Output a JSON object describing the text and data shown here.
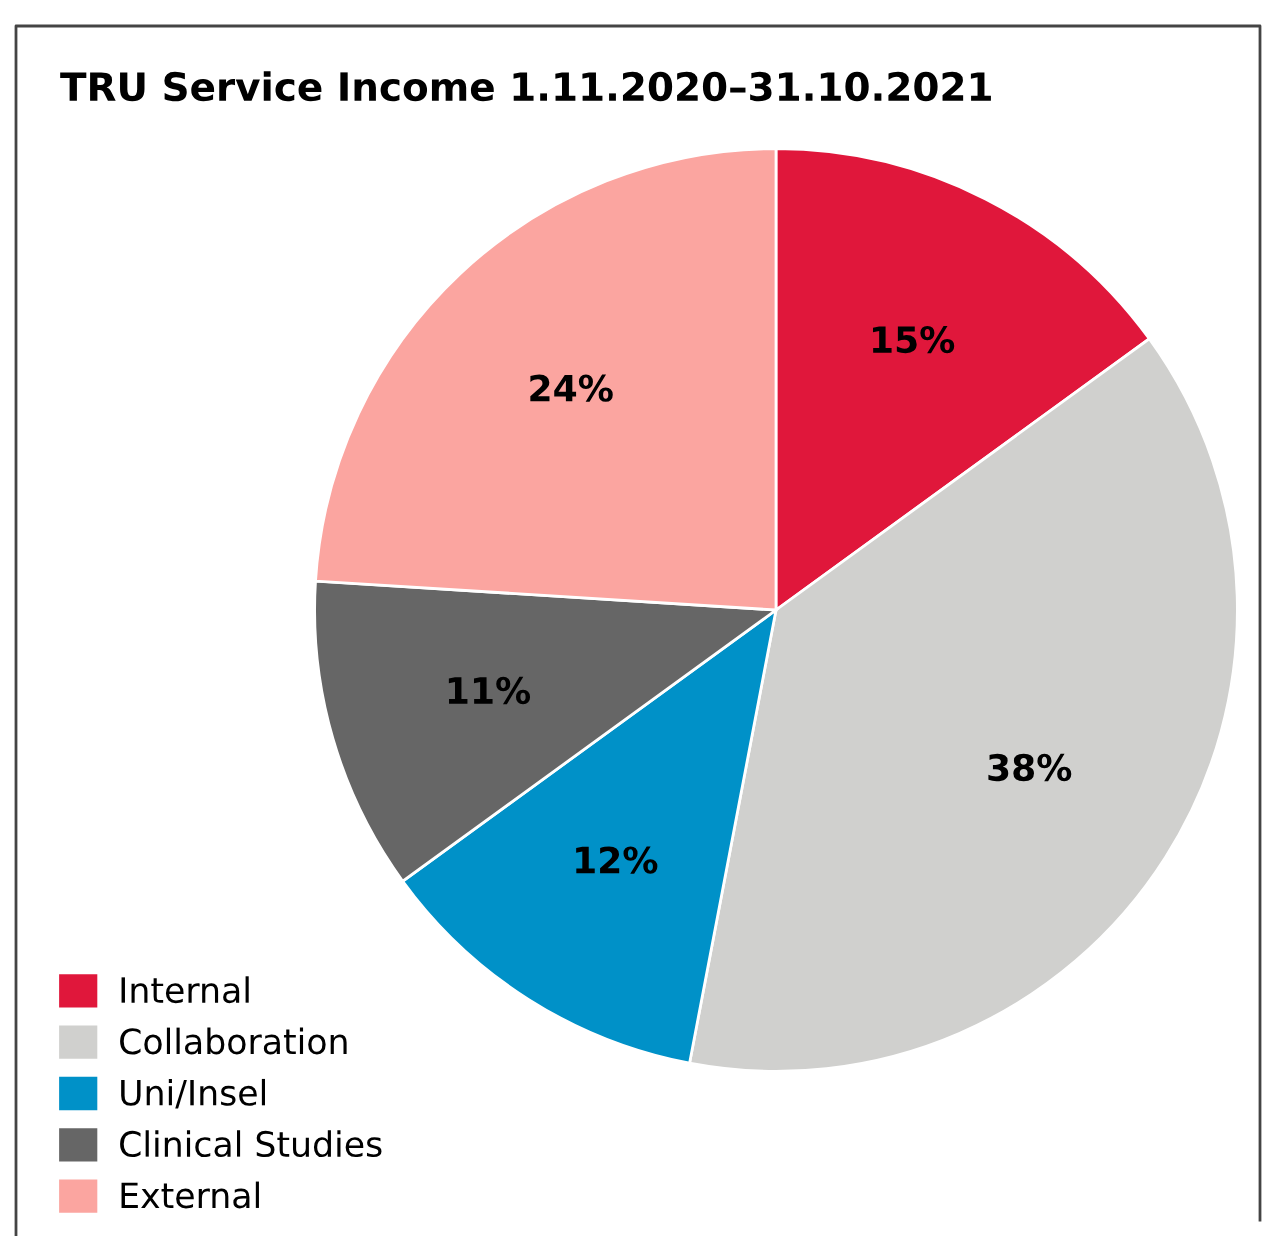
{
  "chart_data": {
    "type": "pie",
    "title": "TRU Service Income 1.11.2020–31.10.2021",
    "categories": [
      "Internal",
      "Collaboration",
      "Uni/Insel",
      "Clinical Studies",
      "External"
    ],
    "values": [
      15,
      38,
      12,
      11,
      24
    ],
    "colors": [
      "#e0173b",
      "#d0d0ce",
      "#0091c8",
      "#666666",
      "#fba5a0"
    ],
    "value_labels": [
      "15%",
      "38%",
      "12%",
      "11%",
      "24%"
    ],
    "legend": "bottom left"
  }
}
